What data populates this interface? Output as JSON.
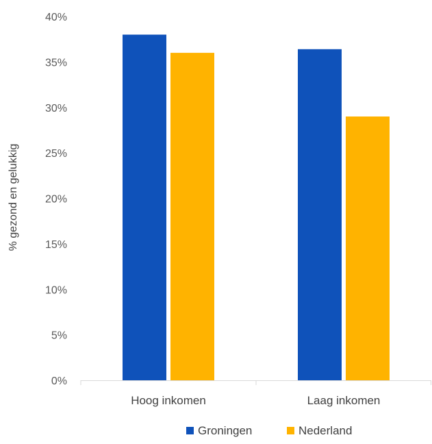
{
  "chart_data": {
    "type": "bar",
    "categories": [
      "Hoog inkomen",
      "Laag inkomen"
    ],
    "series": [
      {
        "name": "Groningen",
        "values": [
          38.0,
          36.4
        ]
      },
      {
        "name": "Nederland",
        "values": [
          36.0,
          29.0
        ]
      }
    ],
    "title": "",
    "xlabel": "",
    "ylabel": "% gezond en gelukkig",
    "ylim": [
      0,
      40
    ],
    "yticks": [
      0,
      5,
      10,
      15,
      20,
      25,
      30,
      35,
      40
    ],
    "ytick_labels": [
      "0%",
      "5%",
      "10%",
      "15%",
      "20%",
      "25%",
      "30%",
      "35%",
      "40%"
    ],
    "grid": false,
    "legend": "bottom"
  },
  "colors": {
    "Groningen": "#0F52BA",
    "Nederland": "#FFB300",
    "axis": "#D9D9D9"
  }
}
